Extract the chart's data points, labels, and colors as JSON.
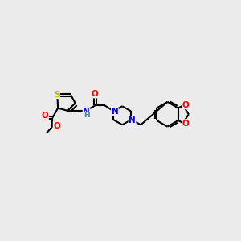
{
  "bg_color": "#ebebeb",
  "atom_colors": {
    "S": "#c8b400",
    "N": "#0000ff",
    "O": "#ff0000",
    "C": "#000000",
    "H": "#4a8080"
  },
  "bond_color": "#000000",
  "figsize": [
    3.0,
    3.0
  ],
  "dpi": 100
}
